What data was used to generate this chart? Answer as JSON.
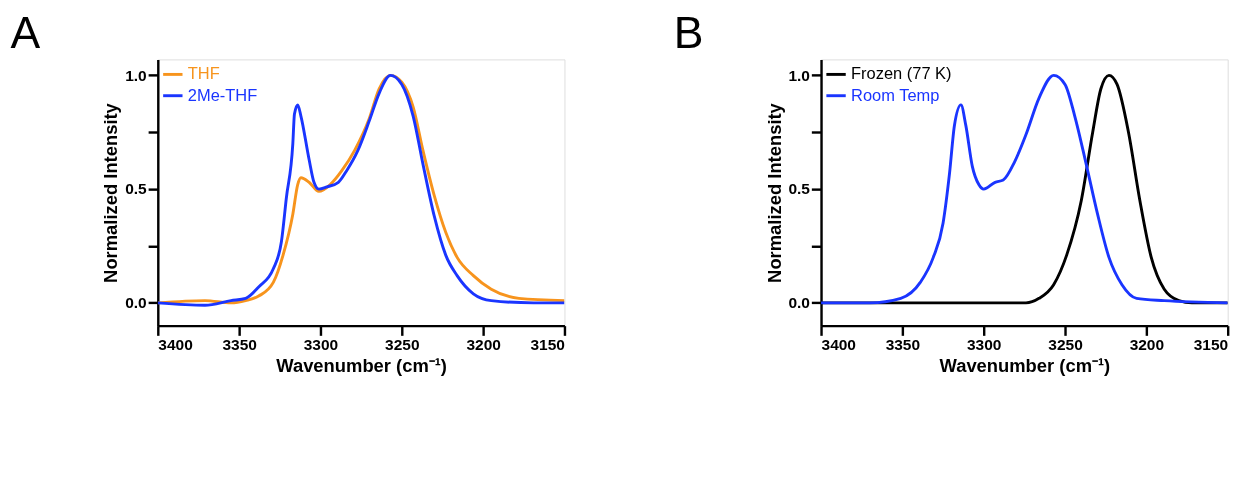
{
  "chart_data": [
    {
      "type": "line",
      "title": "A",
      "xlabel": "Wavenumber (cm⁻¹)",
      "ylabel": "Normalized Intensity",
      "xlim": [
        3400,
        3150
      ],
      "xticks": [
        3400,
        3350,
        3300,
        3250,
        3200,
        3150
      ],
      "ylim": [
        -0.1,
        1.07
      ],
      "yticks": [
        {
          "value": 0,
          "label": "0.0"
        },
        {
          "value": 0.25,
          "label": null
        },
        {
          "value": 0.5,
          "label": "0.5"
        },
        {
          "value": 0.75,
          "label": null
        },
        {
          "value": 1,
          "label": "1.0"
        }
      ],
      "grid": false,
      "legend": "top left",
      "marker": "none",
      "line_style": "solid",
      "series": [
        {
          "name": "THF",
          "color": "#f7941d",
          "x": [
            3400,
            3371,
            3355,
            3346,
            3338,
            3329,
            3323,
            3317,
            3314,
            3312,
            3307,
            3301,
            3294,
            3287,
            3279,
            3270,
            3264,
            3257,
            3250,
            3243,
            3237,
            3230,
            3223,
            3216,
            3206,
            3195,
            3178,
            3150
          ],
          "values": [
            0.0,
            0.01,
            0.0,
            0.01,
            0.03,
            0.09,
            0.21,
            0.39,
            0.52,
            0.55,
            0.53,
            0.49,
            0.52,
            0.58,
            0.67,
            0.81,
            0.94,
            1.0,
            0.97,
            0.86,
            0.67,
            0.47,
            0.31,
            0.2,
            0.12,
            0.06,
            0.02,
            0.01
          ]
        },
        {
          "name": "2Me-THF",
          "color": "#1a35ff",
          "x": [
            3400,
            3371,
            3355,
            3346,
            3338,
            3329,
            3324,
            3321,
            3317,
            3316,
            3314,
            3312,
            3307,
            3304,
            3301,
            3296,
            3289,
            3284,
            3277,
            3270,
            3264,
            3257,
            3250,
            3243,
            3237,
            3230,
            3223,
            3216,
            3206,
            3195,
            3169,
            3150
          ],
          "values": [
            0.0,
            -0.01,
            0.01,
            0.02,
            0.07,
            0.15,
            0.27,
            0.46,
            0.7,
            0.83,
            0.87,
            0.82,
            0.63,
            0.53,
            0.5,
            0.51,
            0.53,
            0.58,
            0.67,
            0.8,
            0.92,
            1.0,
            0.96,
            0.82,
            0.61,
            0.38,
            0.21,
            0.12,
            0.04,
            0.01,
            0.0,
            0.0
          ]
        }
      ]
    },
    {
      "type": "line",
      "title": "B",
      "xlabel": "Wavenumber (cm⁻¹)",
      "ylabel": "Normalized Intensity",
      "xlim": [
        3400,
        3150
      ],
      "xticks": [
        3400,
        3350,
        3300,
        3250,
        3200,
        3150
      ],
      "ylim": [
        -0.1,
        1.07
      ],
      "yticks": [
        {
          "value": 0,
          "label": "0.0"
        },
        {
          "value": 0.25,
          "label": null
        },
        {
          "value": 0.5,
          "label": "0.5"
        },
        {
          "value": 0.75,
          "label": null
        },
        {
          "value": 1,
          "label": "1.0"
        }
      ],
      "grid": false,
      "legend": "top left",
      "marker": "none",
      "line_style": "solid",
      "series": [
        {
          "name": "Frozen (77 K)",
          "color": "#000000",
          "x": [
            3400,
            3274,
            3266,
            3257,
            3249,
            3240,
            3233,
            3228,
            3223,
            3218,
            3211,
            3204,
            3197,
            3189,
            3180,
            3172,
            3150
          ],
          "values": [
            0.0,
            0.0,
            0.02,
            0.08,
            0.21,
            0.45,
            0.75,
            0.94,
            1.0,
            0.96,
            0.75,
            0.45,
            0.2,
            0.06,
            0.01,
            0.0,
            0.0
          ]
        },
        {
          "name": "Room Temp",
          "color": "#1a35ff",
          "x": [
            3400,
            3370,
            3351,
            3339,
            3331,
            3325,
            3321,
            3318,
            3314,
            3311,
            3307,
            3303,
            3300,
            3293,
            3288,
            3281,
            3274,
            3266,
            3257,
            3250,
            3244,
            3237,
            3230,
            3223,
            3215,
            3206,
            3189,
            3150
          ],
          "values": [
            0.0,
            0.0,
            0.02,
            0.09,
            0.2,
            0.35,
            0.57,
            0.78,
            0.87,
            0.78,
            0.6,
            0.52,
            0.5,
            0.53,
            0.54,
            0.62,
            0.74,
            0.9,
            1.0,
            0.96,
            0.82,
            0.61,
            0.39,
            0.2,
            0.08,
            0.02,
            0.01,
            0.0
          ]
        }
      ]
    }
  ]
}
